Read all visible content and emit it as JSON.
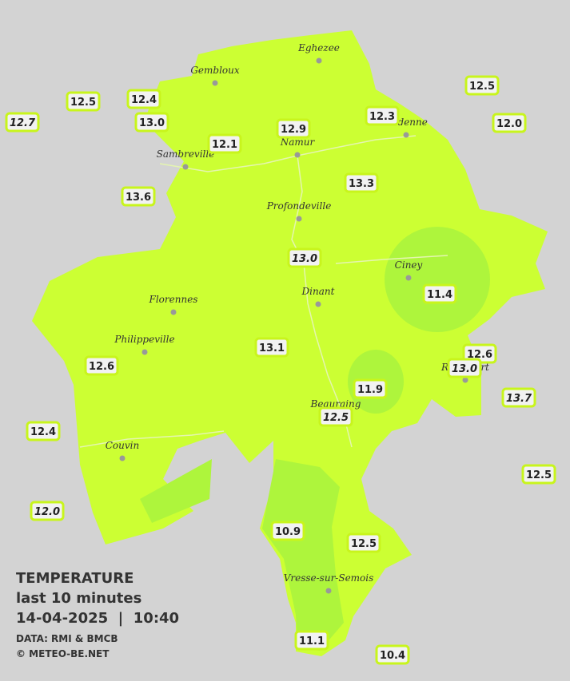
{
  "cities": [
    "Eghezee",
    "Gembloux",
    "Andenne",
    "Namur",
    "Sambreville",
    "Profondeville",
    "Ciney",
    "Dinant",
    "Florennes",
    "Philippeville",
    "Rochefort",
    "Beauraing",
    "Couvin",
    "Vresse-sur-Semois"
  ],
  "temperatures": [
    {
      "value": "12.5"
    },
    {
      "value": "12.4"
    },
    {
      "value": "12.7",
      "italic": true
    },
    {
      "value": "13.0"
    },
    {
      "value": "12.9"
    },
    {
      "value": "12.3"
    },
    {
      "value": "12.5"
    },
    {
      "value": "12.0"
    },
    {
      "value": "12.1"
    },
    {
      "value": "13.3"
    },
    {
      "value": "13.6"
    },
    {
      "value": "13.0",
      "italic": true
    },
    {
      "value": "11.4"
    },
    {
      "value": "13.1"
    },
    {
      "value": "12.6"
    },
    {
      "value": "13.0",
      "italic": true
    },
    {
      "value": "12.6"
    },
    {
      "value": "11.9"
    },
    {
      "value": "13.7",
      "italic": true
    },
    {
      "value": "12.5",
      "italic": true
    },
    {
      "value": "12.4"
    },
    {
      "value": "12.5"
    },
    {
      "value": "12.0",
      "italic": true
    },
    {
      "value": "10.9"
    },
    {
      "value": "12.5"
    },
    {
      "value": "11.1"
    },
    {
      "value": "10.4"
    }
  ],
  "legend": {
    "title": "TEMPERATURE",
    "period": "last 10 minutes",
    "datetime": "14-04-2025  |  10:40",
    "source": "DATA: RMI & BMCB",
    "credit": "© METEO-BE.NET"
  }
}
